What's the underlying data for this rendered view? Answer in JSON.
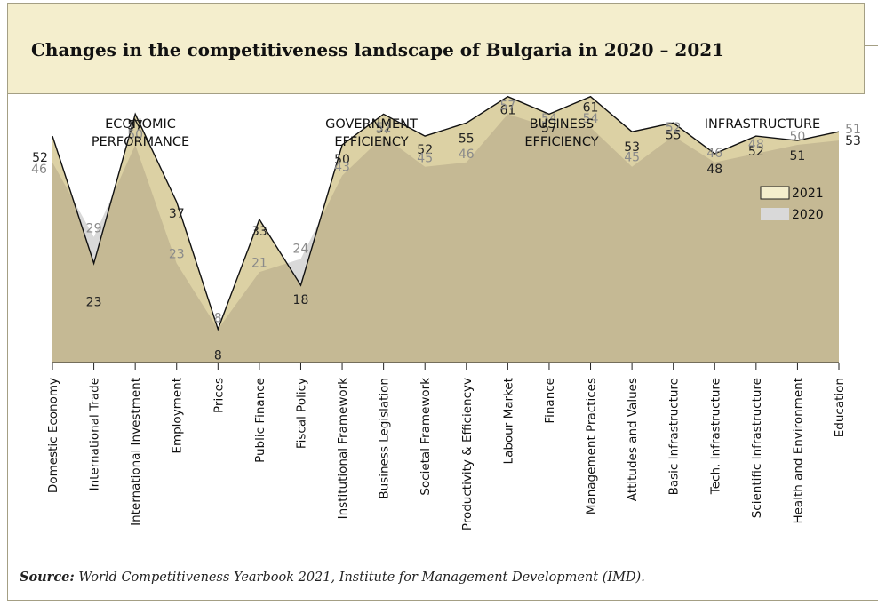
{
  "title": "Changes in the competitiveness landscape of Bulgaria in 2020 – 2021",
  "source": {
    "label": "Source:",
    "text": "World Competitiveness Yearbook 2021, Institute for Management Development (IMD)."
  },
  "colors": {
    "fill_2021": "#d8cc9a",
    "fill_2020": "#d9d9d9",
    "overlap": "#c5b994",
    "line_2021": "#111111",
    "label_2021": "#222222",
    "label_2020": "#8a8a8a",
    "title_bg": "#f4eecd"
  },
  "chart_data": {
    "type": "area",
    "y_axis": "rank (inverted, 1 at top)",
    "groups": [
      {
        "label": [
          "ECONOMIC",
          "PERFORMANCE"
        ]
      },
      {
        "label": [
          "GOVERNMENT",
          "EFFICIENCY"
        ]
      },
      {
        "label": [
          "BUSINESS",
          "EFFICIENCY"
        ]
      },
      {
        "label": [
          "INFRASTRUCTURE"
        ]
      }
    ],
    "categories": [
      "Domestic Economy",
      "International Trade",
      "International Investment",
      "Employment",
      "Prices",
      "Public Finance",
      "Fiscal Policy",
      "Institutional Framework",
      "Business Legislation",
      "Societal Framework",
      "Productivity & Efficiencyv",
      "Labour Market",
      "Finance",
      "Management Practices",
      "Attitudes and Values",
      "Basic Infrastructure",
      "Tech. Infrastructure",
      "Scientific Infrastructure",
      "Health and Environment",
      "Education"
    ],
    "series": [
      {
        "name": "2021",
        "values": [
          52,
          23,
          57,
          37,
          8,
          33,
          18,
          50,
          57,
          52,
          55,
          61,
          57,
          61,
          53,
          55,
          48,
          52,
          51,
          53
        ]
      },
      {
        "name": "2020",
        "values": [
          46,
          29,
          50,
          23,
          8,
          21,
          24,
          43,
          52,
          45,
          46,
          57,
          54,
          54,
          45,
          52,
          46,
          48,
          50,
          51
        ]
      }
    ],
    "legend": {
      "position": "top-right",
      "entries": [
        "2021",
        "2020"
      ]
    }
  }
}
